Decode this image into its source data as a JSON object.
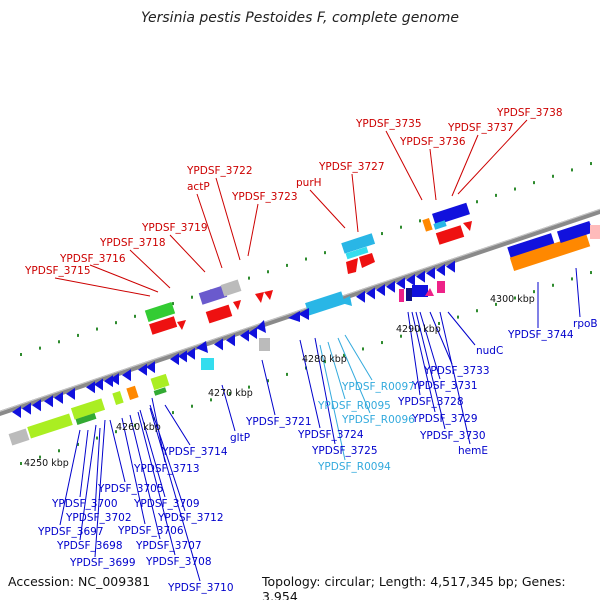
{
  "title": "Yersinia pestis Pestoides F, complete genome",
  "footer": {
    "accession": "Accession: NC_009381",
    "info": "Topology: circular; Length: 4,517,345 bp; Genes: 3,954"
  },
  "colors": {
    "top_label": "#cc0000",
    "bottom_label": "#0000cc",
    "rna_label": "#33aadd",
    "backbone": "#808080"
  },
  "scale_labels": [
    "4250 kbp",
    "4260 kbp",
    "4270 kbp",
    "4280 kbp",
    "4290 kbp",
    "4300 kbp"
  ],
  "top_labels": [
    "YPDSF_3715",
    "YPDSF_3716",
    "YPDSF_3718",
    "YPDSF_3719",
    "actP",
    "YPDSF_3722",
    "YPDSF_3723",
    "purH",
    "YPDSF_3727",
    "YPDSF_3735",
    "YPDSF_3736",
    "YPDSF_3737",
    "YPDSF_3738"
  ],
  "bottom_labels": [
    "YPDSF_3697",
    "YPDSF_3698",
    "YPDSF_3699",
    "YPDSF_3700",
    "YPDSF_3702",
    "YPDSF_3705",
    "YPDSF_3706",
    "YPDSF_3707",
    "YPDSF_3708",
    "YPDSF_3709",
    "YPDSF_3710",
    "YPDSF_3712",
    "YPDSF_3713",
    "YPDSF_3714",
    "gltP",
    "YPDSF_3721",
    "YPDSF_3724",
    "YPDSF_3725",
    "YPDSF_3728",
    "YPDSF_3729",
    "YPDSF_3730",
    "YPDSF_3731",
    "YPDSF_3733",
    "hemE",
    "nudC",
    "YPDSF_3744",
    "rpoB"
  ],
  "rna_labels": [
    "YPDSF_R0094",
    "YPDSF_R0095",
    "YPDSF_R0096",
    "YPDSF_R0097"
  ]
}
